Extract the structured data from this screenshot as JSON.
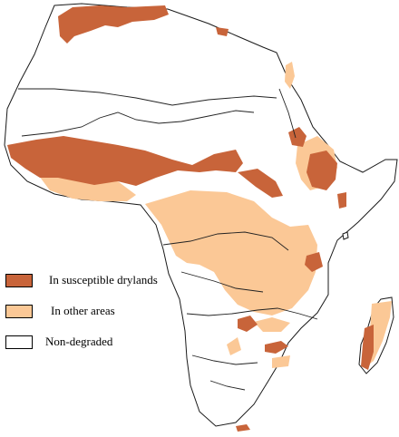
{
  "map": {
    "colors": {
      "drylands": "#c8643a",
      "other_areas": "#fbc896",
      "non_degraded": "#ffffff",
      "outline": "#1a1a1a",
      "rivers": "#222222"
    }
  },
  "legend": {
    "items": [
      {
        "label": "In susceptible drylands",
        "color": "#c8643a"
      },
      {
        "label": "In other areas",
        "color": "#fbc896"
      },
      {
        "label": "Non-degraded",
        "color": "#ffffff"
      }
    ]
  }
}
